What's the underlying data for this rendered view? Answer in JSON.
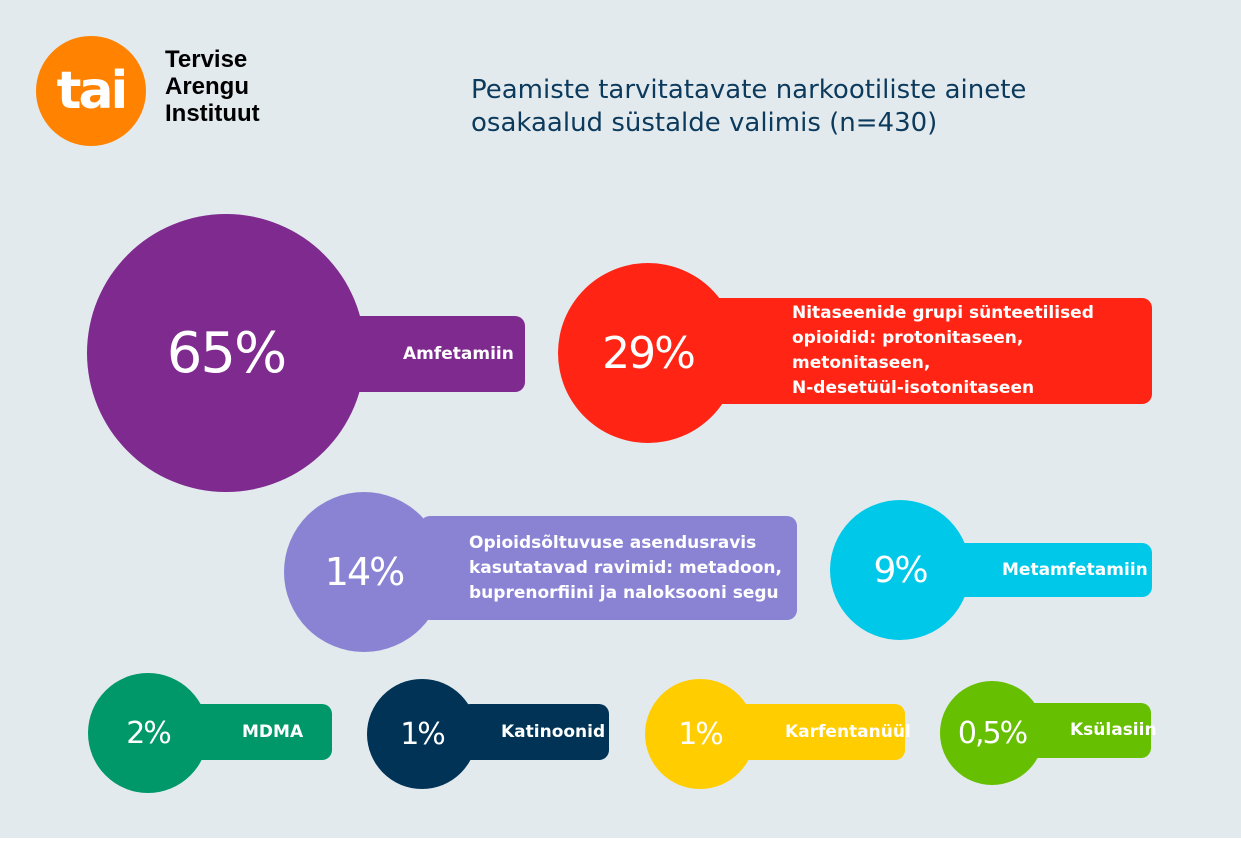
{
  "logo": {
    "mark": "tai",
    "text": "Tervise\nArengu\nInstituut",
    "color": "#ff8200"
  },
  "title": "Peamiste tarvitatavate narkootiliste ainete\nosakaalud süstalde valimis (n=430)",
  "chart_data": {
    "type": "bubble",
    "title": "Peamiste tarvitatavate narkootiliste ainete osakaalud süstalde valimis (n=430)",
    "unit": "%",
    "items": [
      {
        "value_label": "65%",
        "value": 65,
        "label": "Amfetamiin",
        "color": "#7e2a8e"
      },
      {
        "value_label": "29%",
        "value": 29,
        "label": "Nitaseenide grupi sünteetilised\nopioidid: protonitaseen, metonitaseen,\nN-desetüül-isotonitaseen",
        "color": "#ff2414"
      },
      {
        "value_label": "14%",
        "value": 14,
        "label": "Opioidsõltuvuse asendusravis\nkasutatavad ravimid: metadoon,\nbuprenorfiini ja naloksooni segu",
        "color": "#8a83d4"
      },
      {
        "value_label": "9%",
        "value": 9,
        "label": "Metamfetamiin",
        "color": "#00c8e8"
      },
      {
        "value_label": "2%",
        "value": 2,
        "label": "MDMA",
        "color": "#009869"
      },
      {
        "value_label": "1%",
        "value": 1,
        "label": "Katinoonid",
        "color": "#003356"
      },
      {
        "value_label": "1%",
        "value": 1,
        "label": "Karfentanüül",
        "color": "#ffcd00"
      },
      {
        "value_label": "0,5%",
        "value": 0.5,
        "label": "Ksülasiin",
        "color": "#66bf00"
      }
    ]
  }
}
